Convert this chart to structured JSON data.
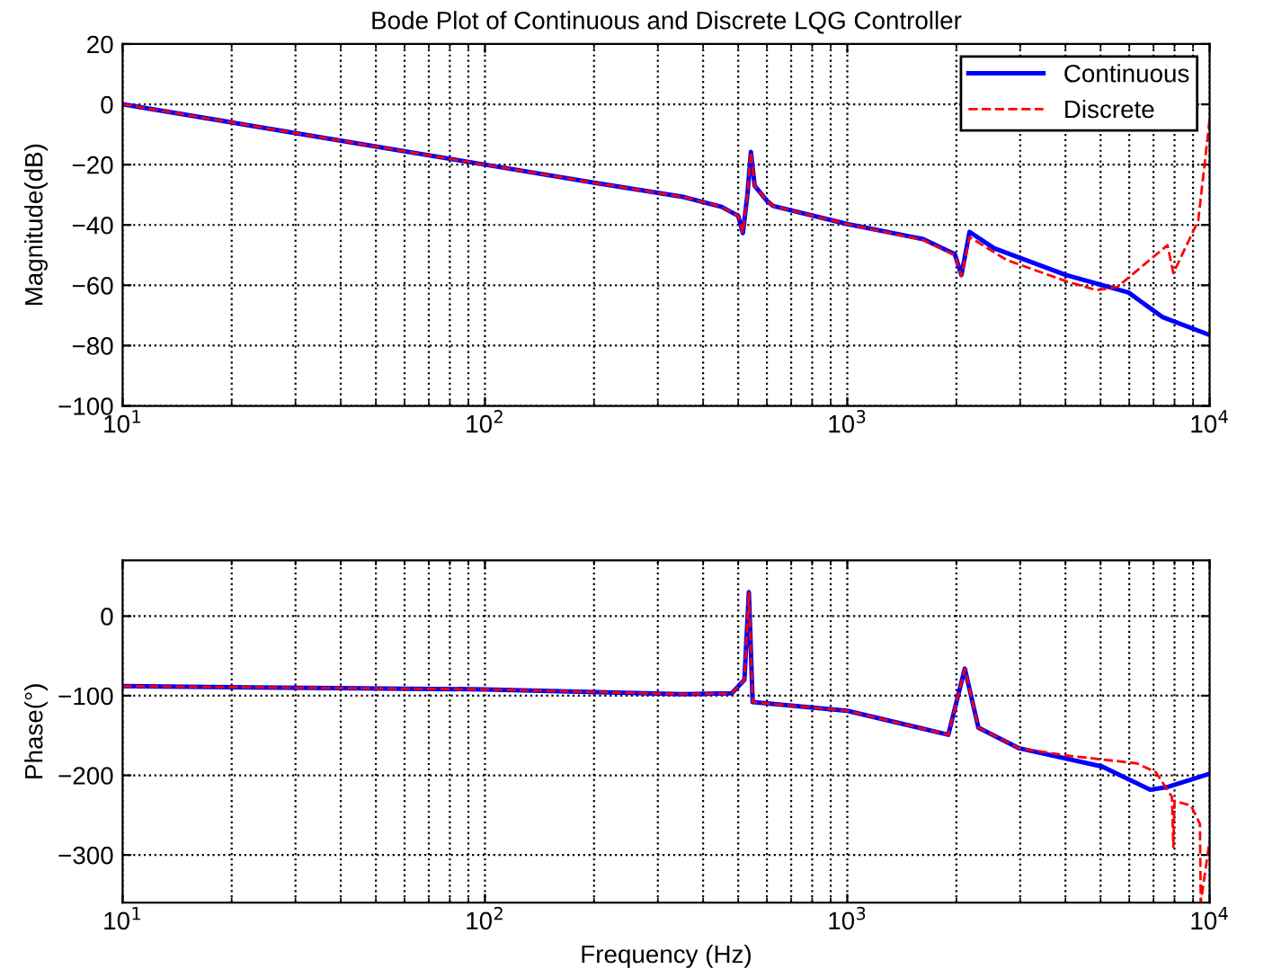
{
  "chart_data": [
    {
      "type": "line",
      "title": "Bode Plot of Continuous and Discrete LQG Controller",
      "ylabel": "Magnitude(dB)",
      "log": "x",
      "grid": true,
      "legend": "top right",
      "xlim": [
        10,
        10000
      ],
      "xticks": [
        {
          "value": 10,
          "label": "10$^{1}$"
        },
        {
          "value": 100,
          "label": "10$^{2}$"
        },
        {
          "value": 1000,
          "label": "10$^{3}$"
        },
        {
          "value": 10000,
          "label": "10$^{4}$"
        }
      ],
      "ylim": [
        -100,
        20
      ],
      "yticks": [
        -100,
        -80,
        -60,
        -40,
        -20,
        0,
        20
      ],
      "series": [
        {
          "name": "Continuous",
          "color": "#0000ff",
          "line_style": "solid",
          "x": [
            10,
            20,
            50,
            100,
            200,
            352,
            450,
            500,
            515,
            530,
            542,
            555,
            600,
            624,
            1000,
            1620,
            1980,
            2065,
            2175,
            2540,
            4010,
            5970,
            7400,
            10000
          ],
          "values": [
            0,
            -6,
            -14,
            -20,
            -26,
            -30.7,
            -34,
            -37,
            -42.7,
            -30,
            -15.8,
            -27,
            -32,
            -33.7,
            -39.7,
            -44.7,
            -49.7,
            -56.6,
            -42.3,
            -47.7,
            -56.6,
            -62.4,
            -70.5,
            -76.5
          ]
        },
        {
          "name": "Discrete",
          "color": "#ff0000",
          "line_style": "dashed",
          "x": [
            10,
            20,
            50,
            100,
            200,
            352,
            450,
            500,
            515,
            530,
            542,
            555,
            600,
            624,
            1000,
            1620,
            1980,
            2065,
            2175,
            2750,
            4000,
            4870,
            5560,
            7650,
            7940,
            9300,
            10000
          ],
          "values": [
            0,
            -6,
            -14,
            -20,
            -26,
            -30.7,
            -34,
            -37,
            -42.7,
            -30,
            -15.8,
            -27,
            -32,
            -33.7,
            -39.7,
            -45,
            -50,
            -57,
            -44,
            -51.6,
            -58.6,
            -61.6,
            -60.6,
            -46.7,
            -56,
            -38.6,
            -5
          ]
        }
      ]
    },
    {
      "type": "line",
      "xlabel": "Frequency (Hz)",
      "ylabel": "Phase(°)",
      "log": "x",
      "grid": true,
      "xlim": [
        10,
        10000
      ],
      "xticks": [
        {
          "value": 10,
          "label": "10$^{1}$"
        },
        {
          "value": 100,
          "label": "10$^{2}$"
        },
        {
          "value": 1000,
          "label": "10$^{3}$"
        },
        {
          "value": 10000,
          "label": "10$^{4}$"
        }
      ],
      "ylim": [
        -360,
        70
      ],
      "yticks": [
        -300,
        -200,
        -100,
        0
      ],
      "series": [
        {
          "color": "#0000ff",
          "line_style": "solid",
          "x": [
            10,
            100,
            350,
            480,
            520,
            535,
            548,
            1000,
            1900,
            2110,
            2300,
            2980,
            5050,
            6850,
            7600,
            10000
          ],
          "values": [
            -88,
            -92,
            -98,
            -97,
            -80,
            30,
            -108,
            -119,
            -149,
            -66,
            -140,
            -166,
            -189,
            -218,
            -215,
            -198
          ]
        },
        {
          "color": "#ff0000",
          "line_style": "dashed",
          "x": [
            10,
            100,
            350,
            480,
            520,
            535,
            548,
            1000,
            1900,
            2110,
            2300,
            2980,
            4010,
            6300,
            7100,
            7870,
            7940,
            8000,
            8880,
            9400,
            9450,
            10000
          ],
          "values": [
            -88,
            -92,
            -98,
            -97,
            -80,
            30,
            -108,
            -119,
            -149,
            -66,
            -140,
            -166,
            -175,
            -185,
            -196,
            -227,
            -290,
            -232,
            -238,
            -261,
            -360,
            -282
          ]
        }
      ]
    }
  ]
}
